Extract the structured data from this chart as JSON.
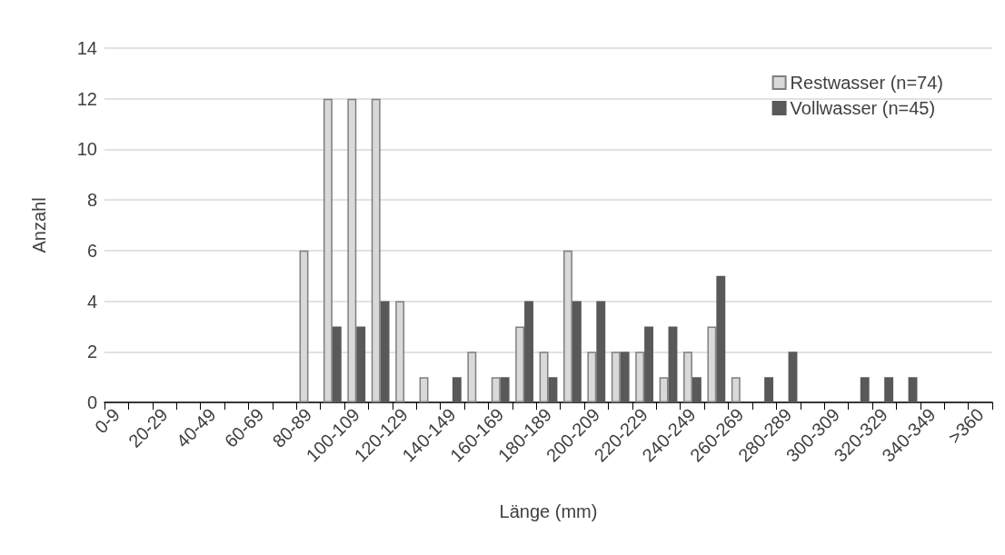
{
  "chart_data": {
    "type": "bar",
    "xlabel": "Länge (mm)",
    "ylabel": "Anzahl",
    "categories": [
      "0-9",
      null,
      "20-29",
      null,
      "40-49",
      null,
      "60-69",
      null,
      "80-89",
      null,
      "100-109",
      null,
      "120-129",
      null,
      "140-149",
      null,
      "160-169",
      null,
      "180-189",
      null,
      "200-209",
      null,
      "220-229",
      null,
      "240-249",
      null,
      "260-269",
      null,
      "280-289",
      null,
      "300-309",
      null,
      "320-329",
      null,
      "340-349",
      null,
      ">360"
    ],
    "series": [
      {
        "name": "Restwasser (n=74)",
        "color": "#d9d9d9",
        "values": [
          0,
          0,
          0,
          0,
          0,
          0,
          0,
          0,
          6,
          12,
          12,
          12,
          4,
          1,
          0,
          2,
          1,
          3,
          2,
          6,
          2,
          2,
          2,
          1,
          2,
          3,
          1,
          0,
          0,
          0,
          0,
          0,
          0,
          0,
          0,
          0,
          0
        ]
      },
      {
        "name": "Vollwasser (n=45)",
        "color": "#595959",
        "values": [
          0,
          0,
          0,
          0,
          0,
          0,
          0,
          0,
          0,
          3,
          3,
          4,
          0,
          0,
          1,
          0,
          1,
          4,
          1,
          4,
          4,
          2,
          3,
          3,
          1,
          5,
          0,
          1,
          2,
          0,
          0,
          1,
          1,
          1,
          0,
          0,
          0
        ]
      }
    ],
    "ylim": [
      0,
      14
    ],
    "yticks": [
      0,
      2,
      4,
      6,
      8,
      10,
      12,
      14
    ],
    "grid": "y",
    "legend": "top right"
  }
}
